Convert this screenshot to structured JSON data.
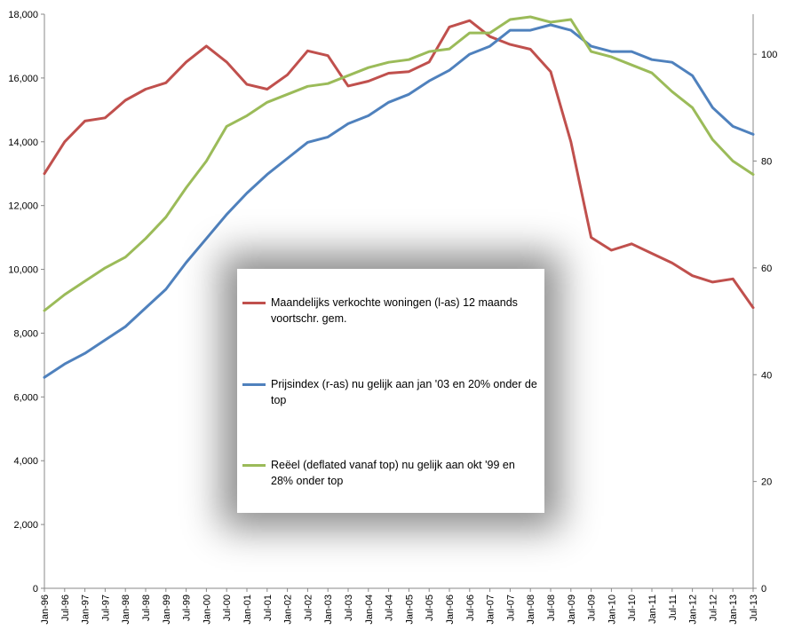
{
  "chart_data": {
    "type": "line",
    "title": "",
    "x_tick_labels": [
      "Jan-96",
      "Jul-96",
      "Jan-97",
      "Jul-97",
      "Jan-98",
      "Jul-98",
      "Jan-99",
      "Jul-99",
      "Jan-00",
      "Jul-00",
      "Jan-01",
      "Jul-01",
      "Jan-02",
      "Jul-02",
      "Jan-03",
      "Jul-03",
      "Jan-04",
      "Jul-04",
      "Jan-05",
      "Jul-05",
      "Jan-06",
      "Jul-06",
      "Jan-07",
      "Jul-07",
      "Jan-08",
      "Jul-08",
      "Jan-09",
      "Jul-09",
      "Jan-10",
      "Jul-10",
      "Jan-11",
      "Jul-11",
      "Jan-12",
      "Jul-12",
      "Jan-13",
      "Jul-13"
    ],
    "y_left": {
      "min": 0,
      "max": 18000,
      "ticks": [
        "0",
        "2,000",
        "4,000",
        "6,000",
        "8,000",
        "10,000",
        "12,000",
        "14,000",
        "16,000",
        "18,000"
      ],
      "tick_values": [
        0,
        2000,
        4000,
        6000,
        8000,
        10000,
        12000,
        14000,
        16000,
        18000
      ]
    },
    "y_right": {
      "min": 0,
      "max": 107.5,
      "ticks": [
        "0",
        "20",
        "40",
        "60",
        "80",
        "100"
      ],
      "tick_values": [
        0,
        20,
        40,
        60,
        80,
        100
      ]
    },
    "grid": false,
    "legend_position": "center",
    "series": [
      {
        "name": "Maandelijks verkochte woningen (l-as) 12 maands voortschr. gem.",
        "axis": "left",
        "color": "#c0504d",
        "x": [
          "Jan-96",
          "Jul-96",
          "Jan-97",
          "Jul-97",
          "Jan-98",
          "Jul-98",
          "Jan-99",
          "Jul-99",
          "Jan-00",
          "Jul-00",
          "Jan-01",
          "Jul-01",
          "Jan-02",
          "Jul-02",
          "Jan-03",
          "Jul-03",
          "Jan-04",
          "Jul-04",
          "Jan-05",
          "Jul-05",
          "Jan-06",
          "Jul-06",
          "Jan-07",
          "Jul-07",
          "Jan-08",
          "Jul-08",
          "Jan-09",
          "Jul-09",
          "Jan-10",
          "Jul-10",
          "Jan-11",
          "Jul-11",
          "Jan-12",
          "Jul-12",
          "Jan-13",
          "Jul-13"
        ],
        "values": [
          13000,
          14000,
          14650,
          14750,
          15300,
          15650,
          15850,
          16500,
          17000,
          16500,
          15800,
          15650,
          16100,
          16850,
          16700,
          15750,
          15900,
          16150,
          16200,
          16500,
          17600,
          17800,
          17300,
          17050,
          16900,
          16200,
          14000,
          11000,
          10600,
          10800,
          10500,
          10200,
          9800,
          9600,
          9700,
          8800
        ]
      },
      {
        "name": "Prijsindex (r-as) nu gelijk aan jan '03  en 20% onder de top",
        "axis": "right",
        "color": "#4f81bd",
        "x": [
          "Jan-96",
          "Jul-96",
          "Jan-97",
          "Jul-97",
          "Jan-98",
          "Jul-98",
          "Jan-99",
          "Jul-99",
          "Jan-00",
          "Jul-00",
          "Jan-01",
          "Jul-01",
          "Jan-02",
          "Jul-02",
          "Jan-03",
          "Jul-03",
          "Jan-04",
          "Jul-04",
          "Jan-05",
          "Jul-05",
          "Jan-06",
          "Jul-06",
          "Jan-07",
          "Jul-07",
          "Jan-08",
          "Jul-08",
          "Jan-09",
          "Jul-09",
          "Jan-10",
          "Jul-10",
          "Jan-11",
          "Jul-11",
          "Jan-12",
          "Jul-12",
          "Jan-13",
          "Jul-13"
        ],
        "values": [
          39.5,
          42,
          44,
          46.5,
          49,
          52.5,
          56,
          61,
          65.5,
          70,
          74,
          77.5,
          80.5,
          83.5,
          84.5,
          87,
          88.5,
          91,
          92.5,
          95,
          97,
          100,
          101.5,
          104.5,
          104.5,
          105.5,
          104.5,
          101.5,
          100.5,
          100.5,
          99,
          98.5,
          96,
          90,
          86.5,
          85
        ]
      },
      {
        "name": "Reëel (deflated vanaf top) nu gelijk aan okt '99 en 28% onder top",
        "axis": "right",
        "color": "#9bbb59",
        "x": [
          "Jan-96",
          "Jul-96",
          "Jan-97",
          "Jul-97",
          "Jan-98",
          "Jul-98",
          "Jan-99",
          "Jul-99",
          "Jan-00",
          "Jul-00",
          "Jan-01",
          "Jul-01",
          "Jan-02",
          "Jul-02",
          "Jan-03",
          "Jul-03",
          "Jan-04",
          "Jul-04",
          "Jan-05",
          "Jul-05",
          "Jan-06",
          "Jul-06",
          "Jan-07",
          "Jul-07",
          "Jan-08",
          "Jul-08",
          "Jan-09",
          "Jul-09",
          "Jan-10",
          "Jul-10",
          "Jan-11",
          "Jul-11",
          "Jan-12",
          "Jul-12",
          "Jan-13",
          "Jul-13"
        ],
        "values": [
          52,
          55,
          57.5,
          60,
          62,
          65.5,
          69.5,
          75,
          80,
          86.5,
          88.5,
          91,
          92.5,
          94,
          94.5,
          96,
          97.5,
          98.5,
          99,
          100.5,
          101,
          104,
          104,
          106.5,
          107,
          106,
          106.5,
          100.5,
          99.5,
          98,
          96.5,
          93,
          90,
          84,
          80,
          77.5
        ]
      }
    ]
  }
}
